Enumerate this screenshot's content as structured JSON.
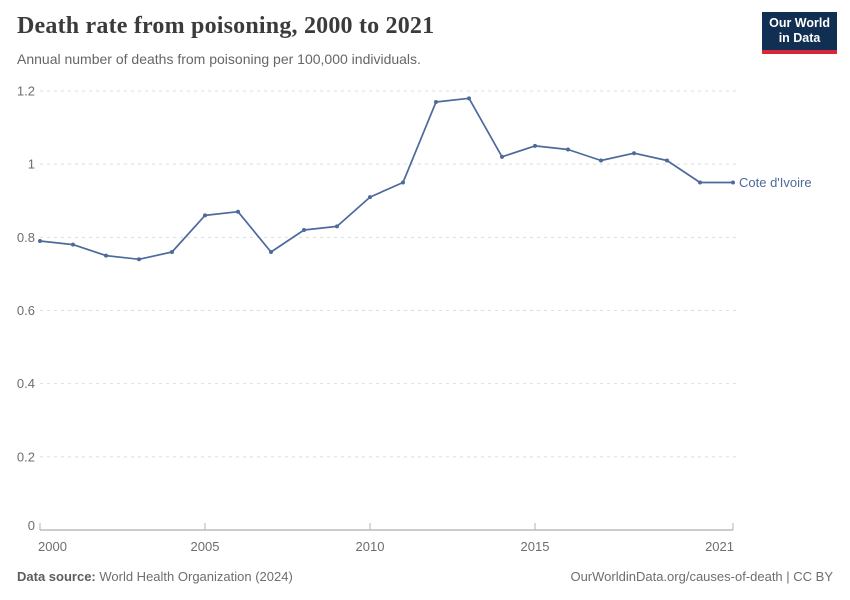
{
  "header": {
    "title": "Death rate from poisoning, 2000 to 2021",
    "subtitle": "Annual number of deaths from poisoning per 100,000 individuals."
  },
  "logo": {
    "line1": "Our World",
    "line2": "in Data",
    "bg_color": "#102f52",
    "accent_color": "#d62839"
  },
  "footer": {
    "source_label": "Data source:",
    "source_text": " World Health Organization (2024)",
    "link_text": "OurWorldinData.org/causes-of-death | CC BY"
  },
  "chart_data": {
    "type": "line",
    "title": "Death rate from poisoning, 2000 to 2021",
    "ylabel": "",
    "xlabel": "",
    "xlim": [
      2000,
      2021
    ],
    "ylim": [
      0,
      1.2
    ],
    "grid": "horizontal-dashed",
    "legend_position": "end-of-line",
    "xticks": [
      2000,
      2005,
      2010,
      2015,
      2021
    ],
    "yticks": [
      0,
      0.2,
      0.4,
      0.6,
      0.8,
      1,
      1.2
    ],
    "ytick_labels": [
      "0",
      "0.2",
      "0.4",
      "0.6",
      "0.8",
      "1",
      "1.2"
    ],
    "series": [
      {
        "name": "Cote d'Ivoire",
        "color": "#4c6a9c",
        "x": [
          2000,
          2001,
          2002,
          2003,
          2004,
          2005,
          2006,
          2007,
          2008,
          2009,
          2010,
          2011,
          2012,
          2013,
          2014,
          2015,
          2016,
          2017,
          2018,
          2019,
          2020,
          2021
        ],
        "values": [
          0.79,
          0.78,
          0.75,
          0.74,
          0.76,
          0.86,
          0.87,
          0.76,
          0.82,
          0.83,
          0.91,
          0.95,
          1.17,
          1.18,
          1.02,
          1.05,
          1.04,
          1.01,
          1.03,
          1.01,
          0.95,
          0.95
        ]
      }
    ],
    "colors": {
      "grid": "#dddddd",
      "axis": "#9a9a9a",
      "tick": "#b3b3b3",
      "tick_label": "#6e6e6e"
    }
  }
}
